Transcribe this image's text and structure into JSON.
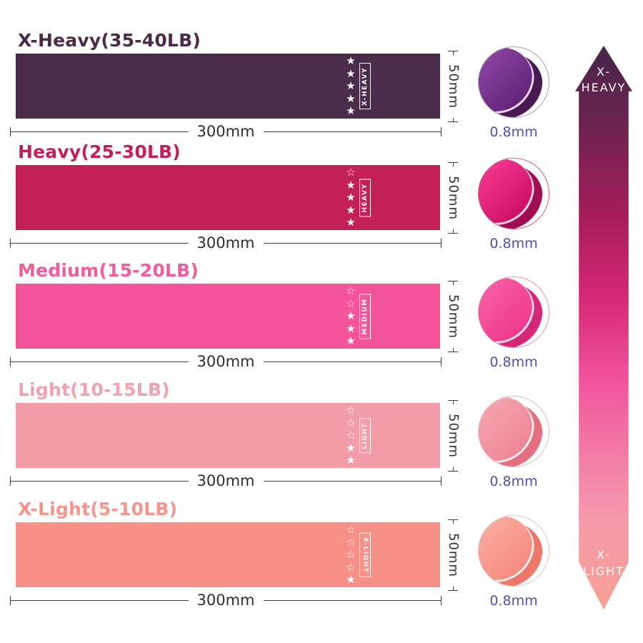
{
  "bands": [
    {
      "title": "X-Heavy(35-40LB)",
      "tag": "X-HEAVY",
      "stars_total": 5,
      "stars_filled": 5,
      "width_label": "300mm",
      "height_label": "50mm",
      "thickness_label": "0.8mm",
      "color": "#4a2b49",
      "title_color": "#4a2b49",
      "thumb": {
        "main": "#8a41a0",
        "deep": "#63267b",
        "shadow": "#471a52",
        "edge": "#e9d8ef",
        "ring": "#a9a0aa"
      }
    },
    {
      "title": "Heavy(25-30LB)",
      "tag": "HEAVY",
      "stars_total": 5,
      "stars_filled": 4,
      "width_label": "300mm",
      "height_label": "50mm",
      "thickness_label": "0.8mm",
      "color": "#c32058",
      "title_color": "#c2205c",
      "thumb": {
        "main": "#f0348e",
        "deep": "#cf1168",
        "shadow": "#a00d52",
        "edge": "#ffd9e9",
        "ring": "#c95f86"
      }
    },
    {
      "title": "Medium(15-20LB)",
      "tag": "MEDIUM",
      "stars_total": 5,
      "stars_filled": 3,
      "width_label": "300mm",
      "height_label": "50mm",
      "thickness_label": "0.8mm",
      "color": "#f4559a",
      "title_color": "#f05c9c",
      "thumb": {
        "main": "#f65ba3",
        "deep": "#ef3d8d",
        "shadow": "#d42776",
        "edge": "#ffdeed",
        "ring": "#de93b4"
      }
    },
    {
      "title": "Light(10-15LB)",
      "tag": "LIGHT",
      "stars_total": 5,
      "stars_filled": 2,
      "width_label": "300mm",
      "height_label": "50mm",
      "thickness_label": "0.8mm",
      "color": "#f39dab",
      "title_color": "#f2a2ae",
      "thumb": {
        "main": "#f4a1ae",
        "deep": "#ee8798",
        "shadow": "#e4707f",
        "edge": "#fff0f3",
        "ring": "#e5b9c0"
      }
    },
    {
      "title": "X-Light(5-10LB)",
      "tag": "X-LIGHT",
      "stars_total": 5,
      "stars_filled": 1,
      "width_label": "300mm",
      "height_label": "50mm",
      "thickness_label": "0.8mm",
      "color": "#f79188",
      "title_color": "#f7958d",
      "thumb": {
        "main": "#f9a89d",
        "deep": "#f68d81",
        "shadow": "#ee776b",
        "edge": "#fff1ec",
        "ring": "#eabfb7"
      }
    }
  ],
  "scale_arrow": {
    "top_line1": "X-",
    "top_line2": "HEAVY",
    "bottom_line1": "X-",
    "bottom_line2": "LIGHT",
    "gradient": [
      "#44254a 0%",
      "#6f234f 15%",
      "#a61d58 30%",
      "#d62973 45%",
      "#f0509a 58%",
      "#f37aa5 72%",
      "#f59aab 84%",
      "#f8a193 100%"
    ]
  }
}
